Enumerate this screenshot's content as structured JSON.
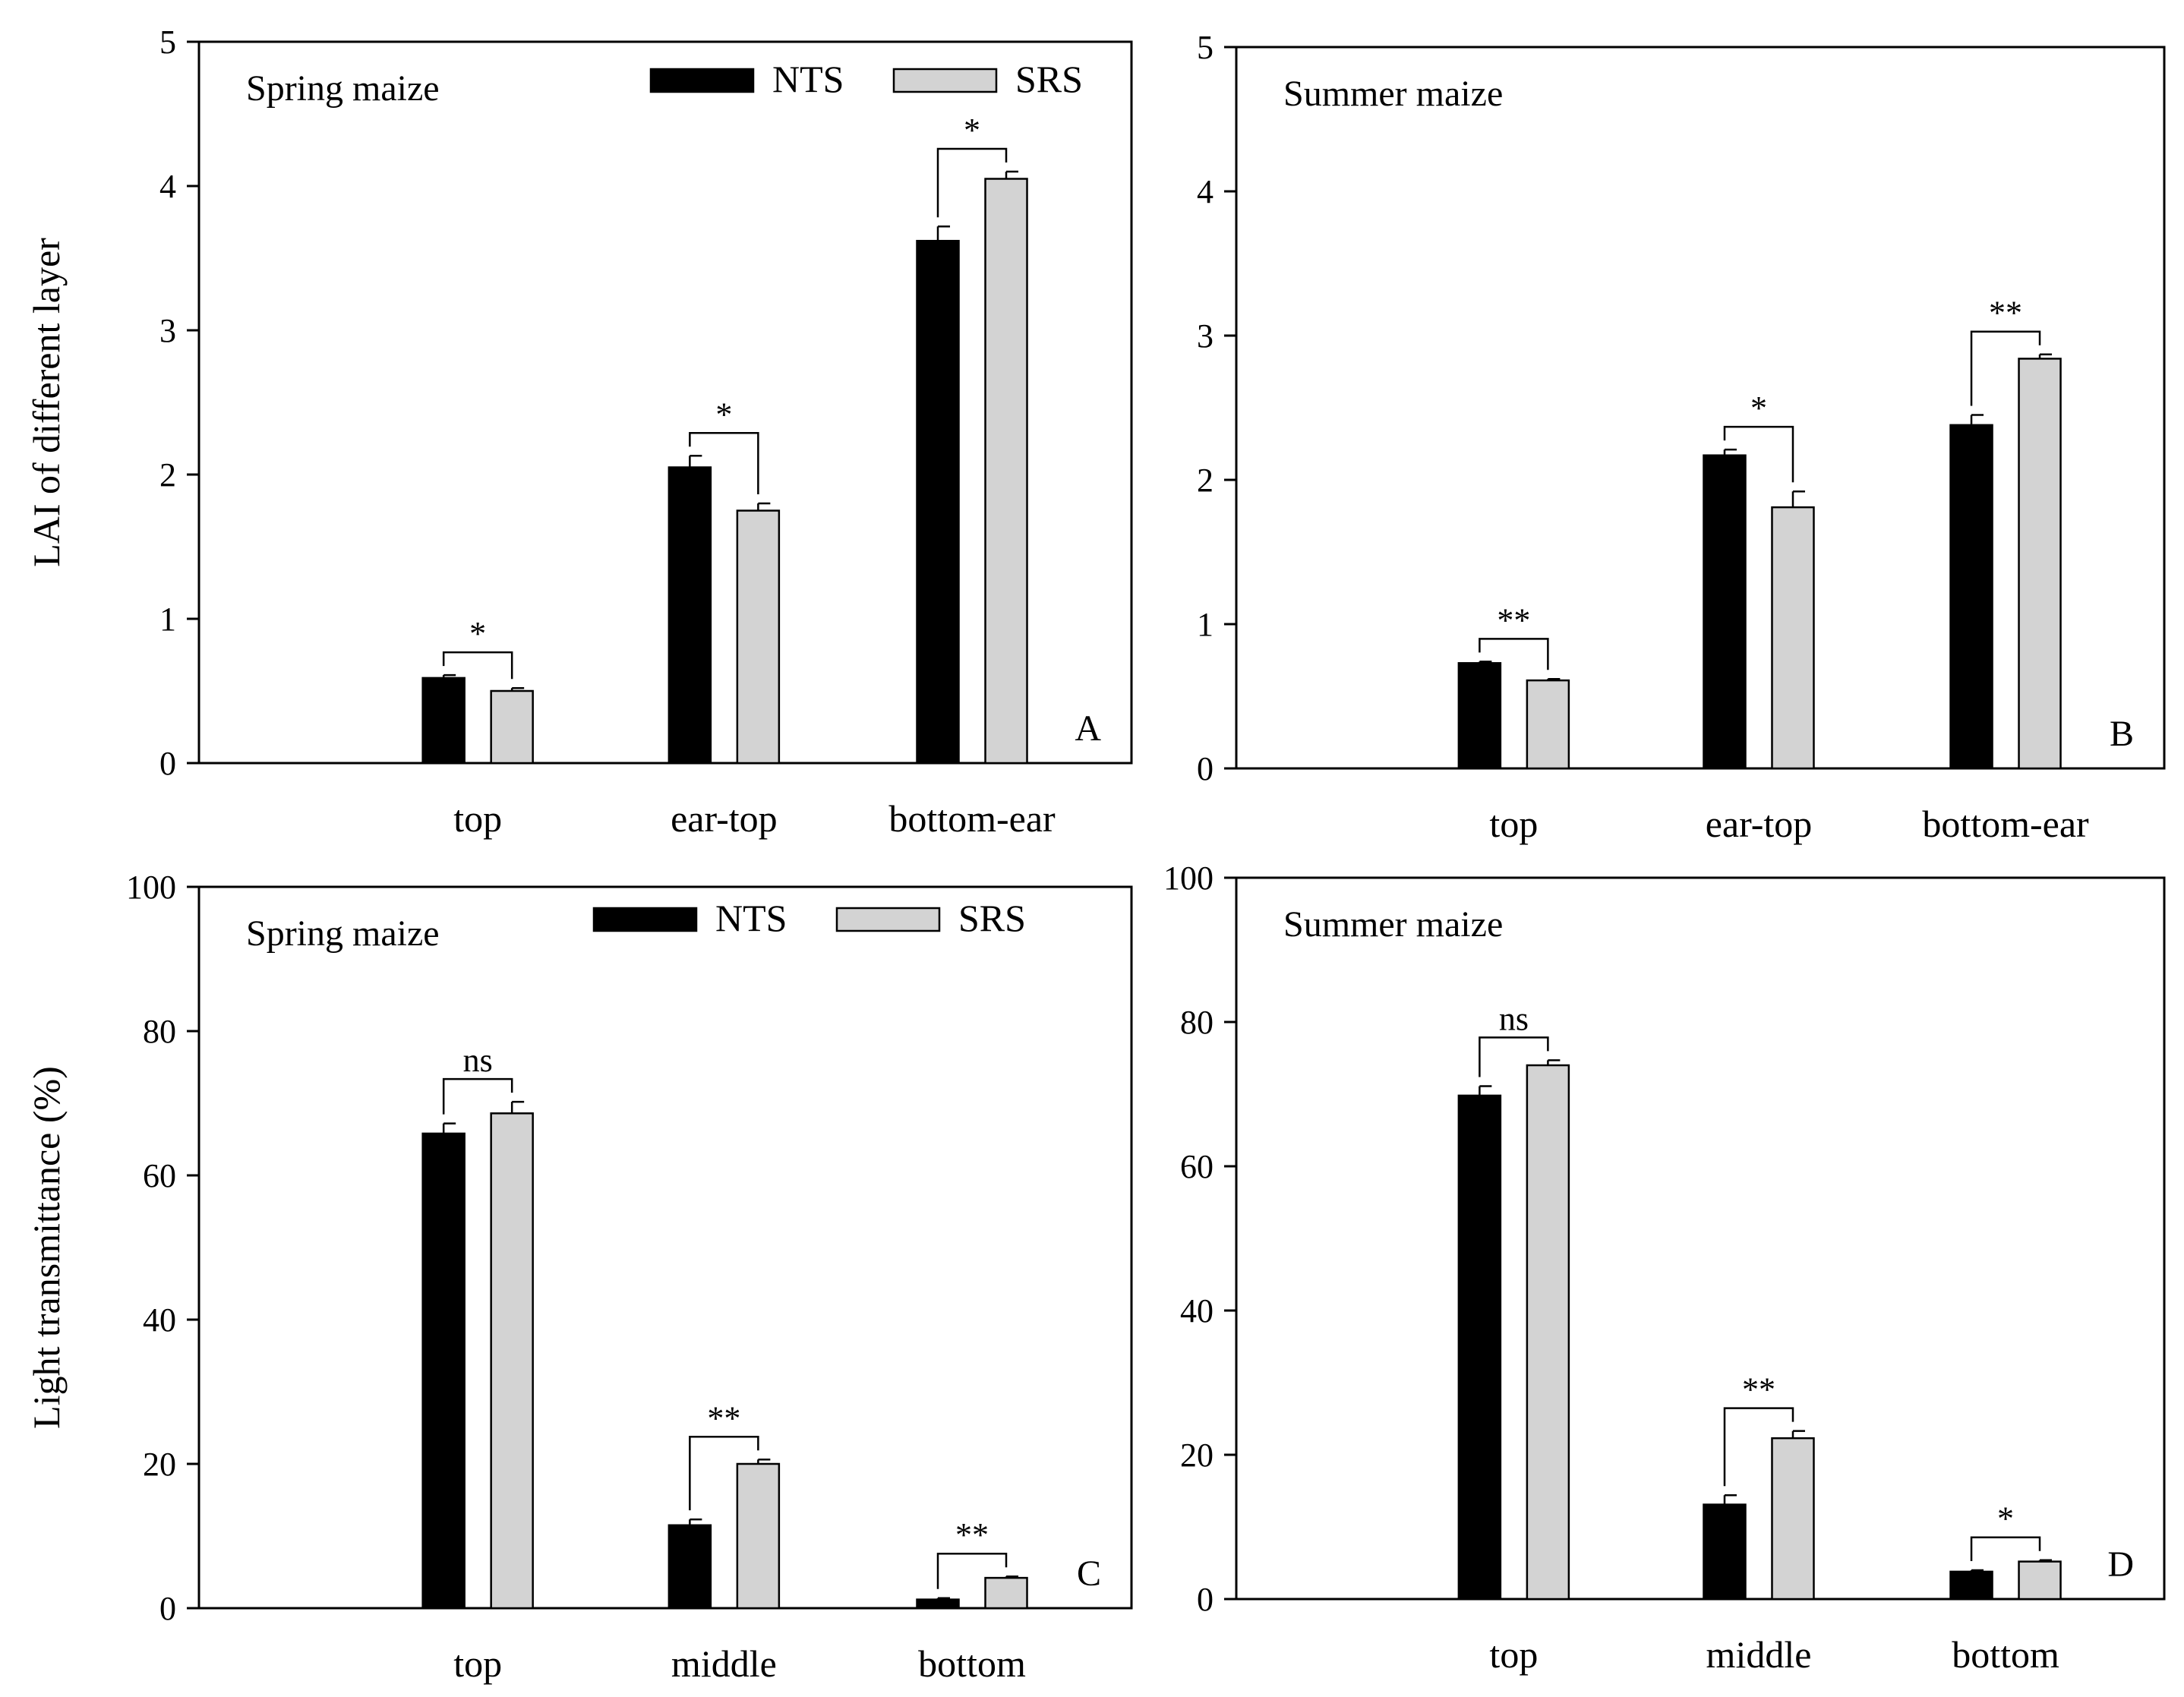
{
  "chart_data": [
    {
      "type": "bar",
      "panel": "A",
      "title": "Spring maize",
      "ylabel": "LAI of different layer",
      "xlabel": "",
      "ylim": [
        0,
        5
      ],
      "yticks": [
        0,
        1,
        2,
        3,
        4,
        5
      ],
      "categories": [
        "top",
        "ear-top",
        "bottom-ear"
      ],
      "series": [
        {
          "name": "NTS",
          "color": "#000000",
          "values": [
            0.59,
            2.05,
            3.62
          ],
          "errors": [
            0.02,
            0.08,
            0.1
          ]
        },
        {
          "name": "SRS",
          "color": "#d3d3d3",
          "values": [
            0.5,
            1.75,
            4.05
          ],
          "errors": [
            0.02,
            0.05,
            0.05
          ]
        }
      ],
      "significance": [
        "*",
        "*",
        "*"
      ],
      "legend": {
        "show": true,
        "position": "top-right"
      }
    },
    {
      "type": "bar",
      "panel": "B",
      "title": "Summer maize",
      "ylabel": "",
      "xlabel": "",
      "ylim": [
        0,
        5
      ],
      "yticks": [
        0,
        1,
        2,
        3,
        4,
        5
      ],
      "categories": [
        "top",
        "ear-top",
        "bottom-ear"
      ],
      "series": [
        {
          "name": "NTS",
          "color": "#000000",
          "values": [
            0.73,
            2.17,
            2.38
          ],
          "errors": [
            0.01,
            0.04,
            0.07
          ]
        },
        {
          "name": "SRS",
          "color": "#d3d3d3",
          "values": [
            0.61,
            1.81,
            2.84
          ],
          "errors": [
            0.01,
            0.11,
            0.03
          ]
        }
      ],
      "significance": [
        "**",
        "*",
        "**"
      ],
      "legend": {
        "show": false
      }
    },
    {
      "type": "bar",
      "panel": "C",
      "title": "Spring maize",
      "ylabel": "Light transmittance (%)",
      "xlabel": "",
      "ylim": [
        0,
        100
      ],
      "yticks": [
        0,
        20,
        40,
        60,
        80,
        100
      ],
      "categories": [
        "top",
        "middle",
        "bottom"
      ],
      "series": [
        {
          "name": "NTS",
          "color": "#000000",
          "values": [
            65.8,
            11.5,
            1.2
          ],
          "errors": [
            1.4,
            0.8,
            0.2
          ]
        },
        {
          "name": "SRS",
          "color": "#d3d3d3",
          "values": [
            68.6,
            20.0,
            4.2
          ],
          "errors": [
            1.6,
            0.6,
            0.2
          ]
        }
      ],
      "significance": [
        "ns",
        "**",
        "**"
      ],
      "legend": {
        "show": true,
        "position": "top-right"
      }
    },
    {
      "type": "bar",
      "panel": "D",
      "title": "Summer maize",
      "ylabel": "",
      "xlabel": "",
      "ylim": [
        0,
        100
      ],
      "yticks": [
        0,
        20,
        40,
        60,
        80,
        100
      ],
      "categories": [
        "top",
        "middle",
        "bottom"
      ],
      "series": [
        {
          "name": "NTS",
          "color": "#000000",
          "values": [
            69.8,
            13.1,
            3.8
          ],
          "errors": [
            1.3,
            1.3,
            0.2
          ]
        },
        {
          "name": "SRS",
          "color": "#d3d3d3",
          "values": [
            74.0,
            22.3,
            5.2
          ],
          "errors": [
            0.7,
            1.0,
            0.2
          ]
        }
      ],
      "significance": [
        "ns",
        "**",
        "*"
      ],
      "legend": {
        "show": false
      }
    }
  ]
}
